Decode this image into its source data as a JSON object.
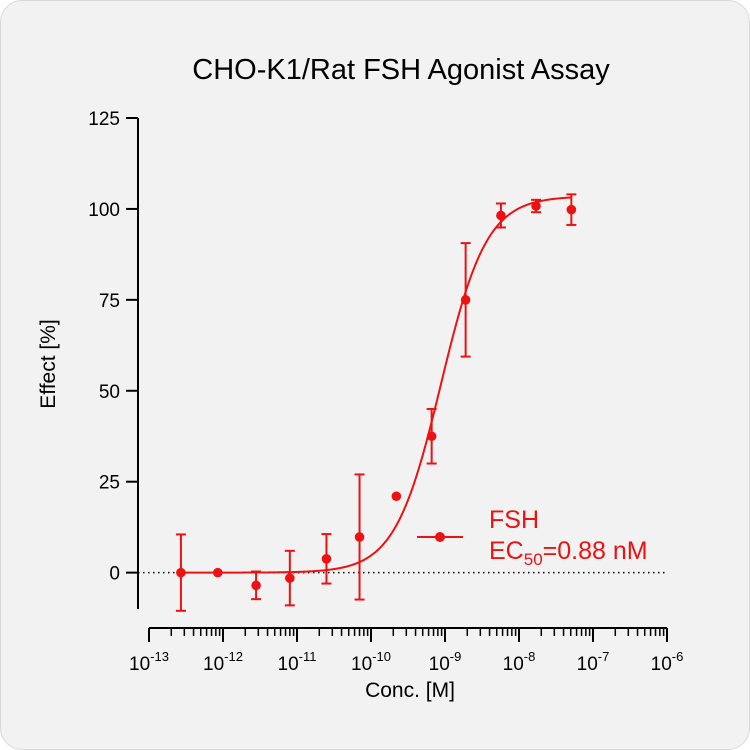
{
  "chart_data": {
    "type": "scatter",
    "title": "CHO-K1/Rat FSH Agonist Assay",
    "xlabel": "Conc. [M]",
    "ylabel": "Effect  [%]",
    "xscale": "log",
    "xlim": [
      1e-13,
      1e-06
    ],
    "ylim": [
      -10,
      125
    ],
    "yticks": [
      "0",
      "25",
      "50",
      "75",
      "100",
      "125"
    ],
    "xticks": [
      {
        "base": "10",
        "exp": "-13"
      },
      {
        "base": "10",
        "exp": "-12"
      },
      {
        "base": "10",
        "exp": "-11"
      },
      {
        "base": "10",
        "exp": "-10"
      },
      {
        "base": "10",
        "exp": "-9"
      },
      {
        "base": "10",
        "exp": "-8"
      },
      {
        "base": "10",
        "exp": "-7"
      },
      {
        "base": "10",
        "exp": "-6"
      }
    ],
    "zero_reference_line": true,
    "legend_position": "bottom-right",
    "series": [
      {
        "name": "FSH",
        "color": "#ee1111",
        "x": [
          2.7e-13,
          8.5e-13,
          2.8e-12,
          8e-12,
          2.5e-11,
          7e-11,
          2.2e-10,
          6.6e-10,
          1.9e-09,
          5.7e-09,
          1.7e-08,
          5.1e-08
        ],
        "y": [
          0.0,
          0.0,
          -3.5,
          -1.5,
          3.8,
          9.8,
          21.0,
          37.5,
          75.0,
          98.2,
          100.8,
          99.8
        ],
        "err": [
          10.5,
          0.5,
          3.8,
          7.5,
          6.8,
          17.2,
          0.5,
          7.5,
          15.6,
          3.3,
          1.7,
          4.2
        ],
        "fit": {
          "model": "four-parameter logistic",
          "bottom": 0,
          "top": 103.5,
          "ec50": 8.8e-10,
          "hill": 1.4
        }
      }
    ],
    "legend": {
      "label": "FSH",
      "ec50_prefix": "EC",
      "ec50_subscript": "50",
      "ec50_value": "=0.88 nM"
    }
  }
}
